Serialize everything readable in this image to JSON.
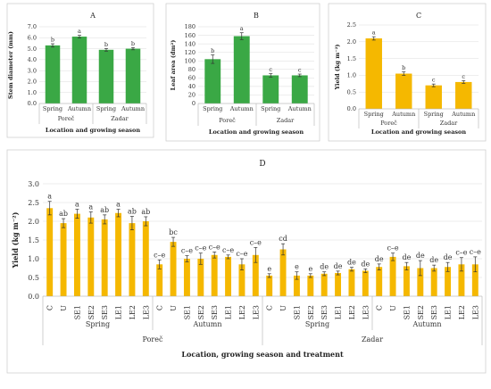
{
  "chart_data": [
    {
      "id": "A",
      "type": "bar",
      "title": "A",
      "ylabel": "Stem diameter (mm)",
      "xlabel": "Location and growing season",
      "ylim": [
        0,
        7
      ],
      "yticks": [
        "0.0",
        "1.0",
        "2.0",
        "3.0",
        "4.0",
        "5.0",
        "6.0",
        "7.0"
      ],
      "categories": [
        "Spring",
        "Autumn",
        "Spring",
        "Autumn"
      ],
      "groups": [
        "Poreč",
        "Zadar"
      ],
      "values": [
        5.3,
        6.1,
        4.9,
        5.0
      ],
      "errors": [
        0.15,
        0.12,
        0.12,
        0.1
      ],
      "letters": [
        "b",
        "a",
        "b",
        "b"
      ],
      "color": "#3aa845"
    },
    {
      "id": "B",
      "type": "bar",
      "title": "B",
      "ylabel": "Leaf area (dm²)",
      "xlabel": "Location and growing season",
      "ylim": [
        0,
        180
      ],
      "yticks": [
        "0",
        "20",
        "40",
        "60",
        "80",
        "100",
        "120",
        "140",
        "160",
        "180"
      ],
      "categories": [
        "Spring",
        "Autumn",
        "Spring",
        "Autumn"
      ],
      "groups": [
        "Poreč",
        "Zadar"
      ],
      "values": [
        104,
        158,
        66,
        66
      ],
      "errors": [
        10,
        8,
        4,
        3
      ],
      "letters": [
        "b",
        "a",
        "c",
        "c"
      ],
      "color": "#3aa845"
    },
    {
      "id": "C",
      "type": "bar",
      "title": "C",
      "ylabel": "Yield (kg m⁻²)",
      "xlabel": "Location and growing season",
      "ylim": [
        0,
        2.5
      ],
      "yticks": [
        "0.0",
        "0.5",
        "1.0",
        "1.5",
        "2.0",
        "2.5"
      ],
      "categories": [
        "Spring",
        "Autumn",
        "Spring",
        "Autumn"
      ],
      "groups": [
        "Poreč",
        "Zadar"
      ],
      "values": [
        2.1,
        1.05,
        0.7,
        0.8
      ],
      "errors": [
        0.05,
        0.05,
        0.04,
        0.04
      ],
      "letters": [
        "a",
        "b",
        "c",
        "c"
      ],
      "color": "#f5b800"
    },
    {
      "id": "D",
      "type": "bar",
      "title": "D",
      "ylabel": "Yield (kg m⁻²)",
      "xlabel": "Location, growing season and treatment",
      "ylim": [
        0,
        3.0
      ],
      "yticks": [
        "0.0",
        "0.5",
        "1.0",
        "1.5",
        "2.0",
        "2.5",
        "3.0"
      ],
      "categories": [
        "C",
        "U",
        "SE1",
        "SE2",
        "SE3",
        "LE1",
        "LE2",
        "LE3",
        "C",
        "U",
        "SE1",
        "SE2",
        "SE3",
        "LE1",
        "LE2",
        "LE3",
        "C",
        "U",
        "SE1",
        "SE2",
        "SE3",
        "LE1",
        "LE2",
        "LE3",
        "C",
        "U",
        "SE1",
        "SE2",
        "SE3",
        "LE1",
        "LE2",
        "LE3"
      ],
      "seasons": [
        "Spring",
        "Autumn",
        "Spring",
        "Autumn"
      ],
      "locations": [
        "Poreč",
        "Zadar"
      ],
      "values": [
        2.35,
        1.95,
        2.2,
        2.1,
        2.05,
        2.22,
        1.95,
        2.0,
        0.85,
        1.45,
        1.0,
        1.0,
        1.1,
        1.05,
        0.85,
        1.1,
        0.55,
        1.25,
        0.55,
        0.55,
        0.6,
        0.62,
        0.72,
        0.68,
        0.78,
        1.05,
        0.8,
        0.75,
        0.75,
        0.78,
        0.85,
        0.85
      ],
      "errors": [
        0.18,
        0.12,
        0.12,
        0.15,
        0.12,
        0.1,
        0.18,
        0.12,
        0.12,
        0.12,
        0.08,
        0.15,
        0.08,
        0.05,
        0.15,
        0.2,
        0.05,
        0.15,
        0.1,
        0.05,
        0.05,
        0.05,
        0.05,
        0.05,
        0.08,
        0.1,
        0.1,
        0.2,
        0.08,
        0.12,
        0.18,
        0.2
      ],
      "letters": [
        "a",
        "ab",
        "a",
        "a",
        "ab",
        "a",
        "ab",
        "ab",
        "c–e",
        "bc",
        "c–e",
        "c–e",
        "c–e",
        "c–e",
        "c–e",
        "c–e",
        "e",
        "cd",
        "e",
        "e",
        "de",
        "de",
        "de",
        "de",
        "de",
        "c–e",
        "de",
        "de",
        "de",
        "de",
        "c–e",
        "c–e"
      ],
      "color": "#f5b800"
    }
  ]
}
